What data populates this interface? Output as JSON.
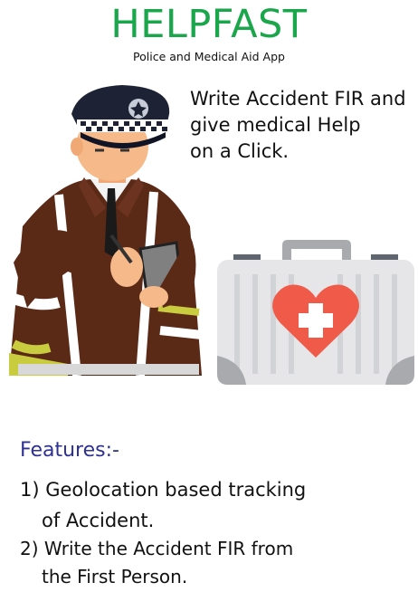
{
  "app": {
    "title": "HELPFAST",
    "subtitle": "Police and Medical Aid App",
    "tagline_lines": [
      "Write Accident FIR and",
      "give medical Help",
      "on a Click."
    ]
  },
  "features": {
    "heading": "Features:-",
    "items": [
      {
        "line1": "1) Geolocation based tracking",
        "line2": "of  Accident."
      },
      {
        "line1": "2)  Write the Accident FIR from",
        "line2": "the First Person."
      }
    ]
  },
  "illustrations": {
    "police_icon": "police-officer-writing-icon",
    "kit_icon": "first-aid-kit-icon"
  },
  "colors": {
    "title": "#1aa64b",
    "features_heading": "#2e3192",
    "uniform": "#5a2a17",
    "reflective_stripe": "#c9cc3f",
    "heart": "#f05a48",
    "kit_body": "#e6e6e8"
  }
}
